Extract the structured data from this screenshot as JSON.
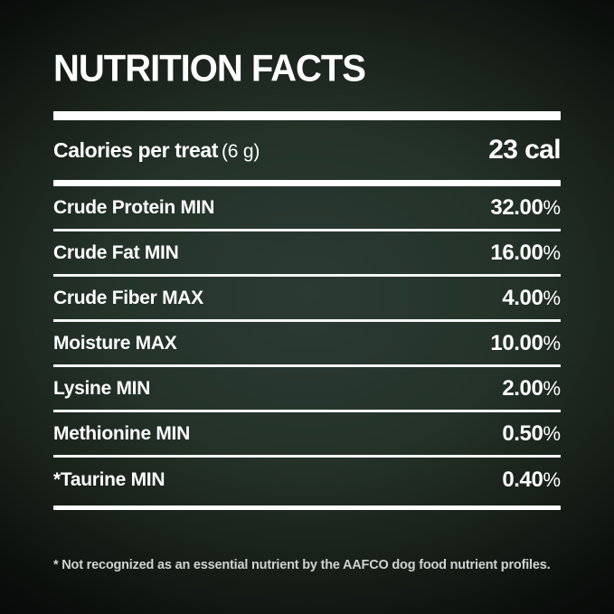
{
  "label": {
    "title": "NUTRITION FACTS",
    "calories": {
      "label": "Calories per treat",
      "serving": "(6 g)",
      "value": "23 cal"
    },
    "rows": [
      {
        "name": "Crude Protein MIN",
        "value": "32.00",
        "unit": "%"
      },
      {
        "name": "Crude Fat MIN",
        "value": "16.00",
        "unit": "%"
      },
      {
        "name": "Crude Fiber MAX",
        "value": "4.00",
        "unit": "%"
      },
      {
        "name": "Moisture MAX",
        "value": "10.00",
        "unit": "%"
      },
      {
        "name": "Lysine MIN",
        "value": "2.00",
        "unit": "%"
      },
      {
        "name": "Methionine MIN",
        "value": "0.50",
        "unit": "%"
      },
      {
        "name": "*Taurine MIN",
        "value": "0.40",
        "unit": "%"
      }
    ],
    "footnote": "* Not recognized as an essential nutrient by the AAFCO dog food nutrient profiles.",
    "colors": {
      "background_center": "#2b3b34",
      "background_edge": "#050606",
      "text": "#ffffff",
      "rule": "#f4f6f5",
      "footnote_text": "#cdd3d0"
    }
  }
}
